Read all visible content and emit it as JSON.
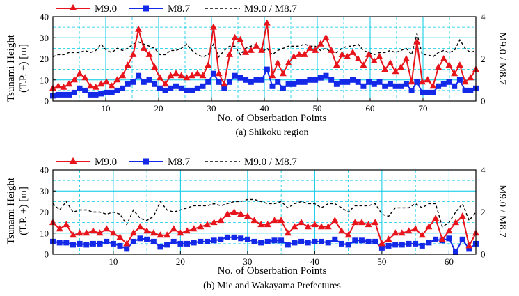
{
  "colors": {
    "m90": "#e8141c",
    "m87": "#1428e8",
    "ratio": "#000000",
    "grid": "#00c8e6"
  },
  "chart_data": [
    {
      "type": "line",
      "caption": "(a) Shikoku region",
      "xlabel": "No. of Obserbation Points",
      "ylabel_left": [
        "Tsunami Height",
        "(T.P. +) [m]"
      ],
      "ylabel_right": "M9.0 / M8.7",
      "xlim": [
        0,
        80
      ],
      "ylim_left": [
        0,
        40
      ],
      "ylim_right": [
        0,
        4
      ],
      "xticks": [
        10,
        20,
        30,
        40,
        50,
        60,
        70
      ],
      "yticks_left": [
        0,
        10,
        20,
        30,
        40
      ],
      "yticks_right": [
        0,
        2,
        4
      ],
      "grid": true,
      "legend": "top-left outside",
      "series": [
        {
          "name": "M9.0",
          "axis": "left",
          "marker": "triangle",
          "values": [
            6,
            7,
            6.5,
            8,
            10,
            13,
            11,
            7,
            6.5,
            8,
            9,
            7,
            10,
            12,
            17,
            22,
            34,
            25,
            22,
            16,
            11,
            8,
            12,
            13,
            12,
            11,
            12,
            13,
            12,
            17,
            35,
            13,
            8,
            22,
            30,
            29,
            23,
            24,
            26,
            24,
            37,
            12,
            18,
            13,
            18,
            21,
            22,
            22,
            25,
            24,
            27,
            30,
            24,
            17,
            22,
            21,
            23,
            20,
            17,
            22,
            19,
            21,
            15,
            18,
            14,
            16,
            20,
            9,
            28,
            9,
            10,
            7,
            16,
            20,
            17,
            13,
            17,
            9,
            11,
            15
          ]
        },
        {
          "name": "M8.7",
          "axis": "left",
          "marker": "square",
          "values": [
            2.5,
            3,
            3,
            3,
            4,
            6,
            5,
            3,
            3,
            3.5,
            4,
            4,
            5,
            6,
            8,
            9,
            12,
            9,
            10,
            8,
            6,
            5,
            6,
            7,
            6,
            5,
            5,
            6,
            7,
            9,
            13,
            9,
            6,
            9,
            12,
            11,
            10,
            9,
            10,
            10,
            15,
            7,
            9,
            6,
            8,
            8,
            9,
            9,
            10,
            10,
            11,
            12,
            10,
            8,
            9,
            9,
            10,
            9,
            7,
            9,
            8,
            9,
            7,
            8,
            7,
            7,
            8,
            5,
            9,
            4,
            4,
            4,
            7,
            8,
            9,
            7,
            10,
            5,
            5,
            6
          ]
        },
        {
          "name": "M9.0 / M8.7",
          "axis": "right",
          "style": "dashed",
          "values": [
            2.1,
            2.2,
            2.2,
            2.3,
            2.3,
            2.3,
            2.4,
            2.3,
            2.4,
            2.7,
            2.4,
            2.3,
            2.5,
            2.4,
            2.5,
            2.7,
            2.8,
            2.7,
            2.6,
            2.5,
            2.2,
            2.2,
            2.4,
            2.4,
            2.5,
            2.7,
            2.4,
            2.2,
            2.1,
            2.2,
            2.7,
            2.1,
            2.4,
            2.6,
            2.6,
            2.2,
            2.5,
            2.6,
            2.7,
            2.3,
            2.5,
            2.2,
            2.4,
            2.5,
            2.6,
            2.6,
            2.6,
            2.7,
            2.6,
            2.6,
            2.4,
            2.5,
            2.3,
            2.3,
            2.5,
            2.6,
            2.6,
            2.7,
            2.4,
            2.3,
            2.2,
            2.3,
            2.3,
            2.4,
            2.3,
            2.4,
            2.5,
            2.2,
            3.2,
            2.2,
            2.2,
            2.1,
            2.3,
            2.4,
            2.3,
            2.4,
            2.9,
            2.5,
            2.3,
            2.4
          ]
        }
      ]
    },
    {
      "type": "line",
      "caption": "(b) Mie and Wakayama Prefectures",
      "xlabel": "No. of Obserbation Points",
      "ylabel_left": [
        "Tsunami Height",
        "(T.P. +) [m]"
      ],
      "ylabel_right": "M9.0 / M8.7",
      "xlim": [
        1,
        64
      ],
      "ylim_left": [
        0,
        40
      ],
      "ylim_right": [
        0,
        4
      ],
      "xticks": [
        10,
        20,
        30,
        40,
        50,
        60
      ],
      "yticks_left": [
        0,
        10,
        20,
        30,
        40
      ],
      "yticks_right": [
        0,
        2,
        4
      ],
      "grid": true,
      "legend": "top-left outside",
      "series": [
        {
          "name": "M9.0",
          "axis": "left",
          "marker": "triangle",
          "values": [
            15,
            12,
            14,
            9,
            10,
            10,
            11,
            10,
            12,
            10,
            8,
            5,
            10,
            13,
            11,
            10,
            9,
            9,
            12,
            10,
            11,
            12,
            13,
            14,
            15,
            16,
            19,
            20,
            19,
            18,
            16,
            14,
            14,
            16,
            16,
            10,
            13,
            15,
            13,
            14,
            13,
            13,
            16,
            11,
            9,
            15,
            15,
            14,
            15,
            5,
            7,
            10,
            10,
            11,
            12,
            9,
            13,
            17,
            7,
            11,
            15,
            18,
            4,
            10
          ]
        },
        {
          "name": "M8.7",
          "axis": "left",
          "marker": "square",
          "values": [
            6,
            5.5,
            5.5,
            4.5,
            5,
            4.5,
            5,
            5,
            6,
            5,
            4,
            2.5,
            6,
            7.5,
            7,
            6,
            3.5,
            4.5,
            6,
            5,
            5,
            5.5,
            6,
            6,
            6.5,
            7,
            8,
            8,
            7.5,
            7,
            6,
            5.5,
            6,
            6.5,
            6.5,
            4.5,
            5.5,
            6,
            5.5,
            6,
            6,
            5.5,
            7,
            5,
            4.5,
            6.5,
            6.5,
            6,
            6,
            3,
            4,
            4.5,
            4.5,
            5,
            5,
            4,
            5.5,
            7,
            6.5,
            7.5,
            1,
            7,
            2.5,
            5
          ]
        },
        {
          "name": "M9.0 / M8.7",
          "axis": "right",
          "style": "dashed",
          "values": [
            2.4,
            2.1,
            2.5,
            2.0,
            2.1,
            2.1,
            2.0,
            2.0,
            1.9,
            2.0,
            1.9,
            1.4,
            2.1,
            1.7,
            1.6,
            1.8,
            2.5,
            2.1,
            2.0,
            2.1,
            2.2,
            2.3,
            2.3,
            2.3,
            2.4,
            2.3,
            2.4,
            2.5,
            2.5,
            2.6,
            2.6,
            2.5,
            2.4,
            2.4,
            2.5,
            2.2,
            2.4,
            2.5,
            2.4,
            2.4,
            2.2,
            2.4,
            2.4,
            2.2,
            2.0,
            2.3,
            2.3,
            2.3,
            2.4,
            1.9,
            1.8,
            2.2,
            2.2,
            2.2,
            2.4,
            2.2,
            2.4,
            2.4,
            1.3,
            1.5,
            2.0,
            2.4,
            1.6,
            2.0
          ]
        }
      ]
    }
  ]
}
